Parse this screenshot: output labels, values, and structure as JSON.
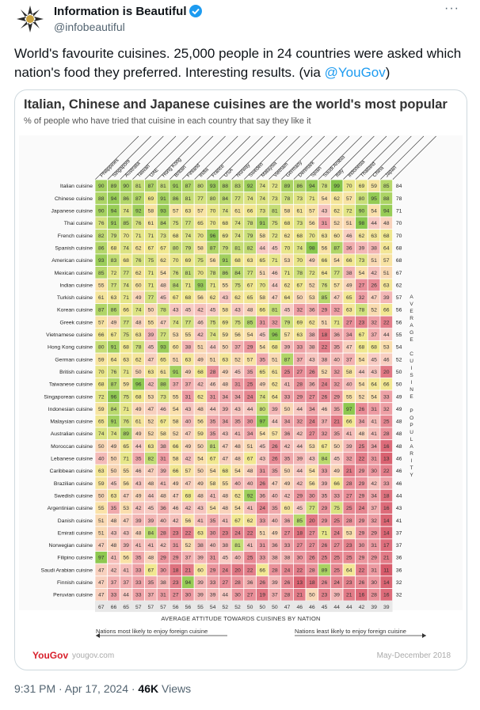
{
  "account": {
    "name": "Information is Beautiful",
    "handle": "@infobeautiful",
    "more_label": "···"
  },
  "tweet": {
    "text": "World's favourite cuisines. 25,000 people in 24 countries were asked which nation's food they preferred. Interesting results. (via ",
    "mention": "@YouGov",
    "closing": ")"
  },
  "card": {
    "title": "Italian, Chinese and Japanese cuisines are the world's most popular",
    "subtitle": "% of people who have tried that cuisine in each country that say they like it",
    "x_axis_label": "AVERAGE ATTITUDE TOWARDS CUISINES BY NATION",
    "left_arrow_label": "Nations most likely to enjoy foreign cuisine",
    "right_arrow_label": "Nations least likely to enjoy foreign cuisine",
    "right_axis_label": "AVERAGE CUISINE POPULARITY",
    "brand": "YouGov",
    "brand_url": "yougov.com",
    "date": "May-December 2018"
  },
  "footer": {
    "time": "9:31 PM · Apr 17, 2024 · ",
    "views": "46K",
    "views_label": " Views"
  },
  "colors": {
    "link": "#1d9bf0",
    "brand": "#d8202c"
  },
  "chart_data": {
    "type": "heatmap",
    "title": "Italian, Chinese and Japanese cuisines are the world's most popular",
    "subtitle": "% of people who have tried that cuisine in each country that say they like it",
    "columns": [
      "Philippines",
      "Singapore",
      "Australia",
      "Taiwan",
      "UAE",
      "Hong Kong",
      "Britain",
      "Finland",
      "India",
      "France",
      "USA",
      "Norway",
      "Sweden",
      "Malaysia",
      "Vietnam",
      "Germany",
      "Denmark",
      "Spain",
      "Saudi Arabia",
      "Italy",
      "Indonesia",
      "Thailand",
      "China",
      "Japan"
    ],
    "rows": [
      "Italian cuisine",
      "Chinese cuisine",
      "Japanese cuisine",
      "Thai cuisine",
      "French cuisine",
      "Spanish cuisine",
      "American cuisine",
      "Mexican cuisine",
      "Indian cuisine",
      "Turkish cuisine",
      "Korean cuisine",
      "Greek cuisine",
      "Vietnamese cuisine",
      "Hong Kong cuisine",
      "German cuisine",
      "British cuisine",
      "Taiwanese cuisine",
      "Singaporean cuisine",
      "Indonesian cuisine",
      "Malaysian cuisine",
      "Australian cuisine",
      "Moroccan cuisine",
      "Lebanese cuisine",
      "Caribbean cuisine",
      "Brazilian cuisine",
      "Swedish cuisine",
      "Argentinian cuisine",
      "Danish cuisine",
      "Emirati cuisine",
      "Norwegian cuisine",
      "Filipino cuisine",
      "Saudi Arabian cuisine",
      "Finnish cuisine",
      "Peruvian cuisine"
    ],
    "values": [
      [
        90,
        89,
        90,
        81,
        87,
        81,
        91,
        87,
        80,
        93,
        88,
        83,
        92,
        74,
        72,
        89,
        86,
        94,
        78,
        99,
        70,
        69,
        59,
        85
      ],
      [
        88,
        94,
        86,
        87,
        69,
        91,
        86,
        81,
        77,
        80,
        84,
        77,
        74,
        74,
        73,
        78,
        73,
        71,
        54,
        62,
        57,
        80,
        95,
        88
      ],
      [
        90,
        94,
        74,
        92,
        58,
        93,
        57,
        63,
        57,
        70,
        74,
        61,
        66,
        73,
        81,
        58,
        61,
        57,
        43,
        62,
        72,
        90,
        54,
        94
      ],
      [
        76,
        91,
        85,
        76,
        61,
        84,
        75,
        77,
        65,
        70,
        68,
        74,
        78,
        91,
        75,
        68,
        73,
        56,
        31,
        52,
        51,
        98,
        44,
        48
      ],
      [
        82,
        79,
        70,
        71,
        71,
        73,
        68,
        74,
        70,
        96,
        69,
        74,
        79,
        58,
        72,
        62,
        68,
        70,
        63,
        60,
        46,
        62,
        63,
        68
      ],
      [
        86,
        68,
        74,
        62,
        67,
        67,
        80,
        79,
        58,
        87,
        79,
        81,
        82,
        44,
        45,
        70,
        74,
        98,
        56,
        87,
        36,
        39,
        38,
        64
      ],
      [
        93,
        83,
        68,
        76,
        75,
        62,
        70,
        69,
        75,
        56,
        91,
        68,
        63,
        65,
        71,
        53,
        70,
        49,
        66,
        54,
        66,
        73,
        51,
        57
      ],
      [
        85,
        72,
        77,
        62,
        71,
        54,
        76,
        81,
        70,
        78,
        86,
        84,
        77,
        51,
        46,
        71,
        78,
        72,
        64,
        77,
        38,
        54,
        42,
        51
      ],
      [
        55,
        77,
        74,
        60,
        71,
        48,
        84,
        71,
        93,
        71,
        55,
        75,
        67,
        70,
        44,
        62,
        67,
        52,
        76,
        57,
        49,
        27,
        26,
        63
      ],
      [
        61,
        63,
        71,
        49,
        77,
        45,
        67,
        68,
        56,
        62,
        43,
        62,
        65,
        58,
        47,
        64,
        50,
        53,
        85,
        47,
        65,
        32,
        47,
        39
      ],
      [
        87,
        86,
        66,
        74,
        50,
        78,
        43,
        45,
        42,
        45,
        58,
        43,
        48,
        66,
        81,
        45,
        32,
        36,
        29,
        32,
        63,
        78,
        52,
        66
      ],
      [
        57,
        49,
        77,
        48,
        55,
        47,
        74,
        77,
        46,
        75,
        69,
        75,
        85,
        31,
        32,
        79,
        69,
        62,
        51,
        71,
        27,
        23,
        32,
        22
      ],
      [
        66,
        67,
        75,
        63,
        39,
        77,
        53,
        55,
        42,
        74,
        59,
        56,
        54,
        45,
        96,
        57,
        63,
        38,
        18,
        36,
        34,
        67,
        37,
        44
      ],
      [
        80,
        91,
        68,
        78,
        45,
        93,
        60,
        38,
        51,
        44,
        50,
        37,
        29,
        54,
        68,
        39,
        33,
        38,
        22,
        35,
        47,
        68,
        68,
        53
      ],
      [
        59,
        64,
        63,
        62,
        47,
        65,
        51,
        63,
        49,
        51,
        63,
        52,
        57,
        35,
        51,
        87,
        37,
        43,
        38,
        40,
        37,
        54,
        45,
        46
      ],
      [
        70,
        76,
        71,
        50,
        63,
        61,
        91,
        49,
        68,
        28,
        49,
        45,
        35,
        65,
        61,
        25,
        27,
        26,
        52,
        32,
        58,
        44,
        43,
        20
      ],
      [
        68,
        87,
        59,
        96,
        42,
        88,
        37,
        37,
        42,
        46,
        48,
        31,
        25,
        49,
        62,
        41,
        28,
        36,
        24,
        32,
        40,
        54,
        64,
        66
      ],
      [
        72,
        96,
        75,
        68,
        53,
        73,
        55,
        31,
        62,
        31,
        34,
        34,
        24,
        74,
        64,
        33,
        29,
        27,
        26,
        29,
        55,
        52,
        54,
        33
      ],
      [
        59,
        84,
        71,
        49,
        47,
        46,
        54,
        43,
        48,
        44,
        39,
        43,
        44,
        80,
        39,
        50,
        44,
        34,
        46,
        35,
        97,
        26,
        31,
        32
      ],
      [
        65,
        91,
        76,
        61,
        52,
        67,
        58,
        40,
        56,
        35,
        34,
        35,
        30,
        97,
        44,
        34,
        32,
        24,
        37,
        21,
        66,
        34,
        41,
        25
      ],
      [
        74,
        74,
        89,
        49,
        52,
        58,
        52,
        47,
        59,
        35,
        43,
        41,
        34,
        54,
        57,
        36,
        42,
        27,
        32,
        35,
        41,
        48,
        41,
        28
      ],
      [
        50,
        49,
        65,
        44,
        63,
        38,
        66,
        49,
        50,
        81,
        47,
        48,
        51,
        45,
        26,
        42,
        44,
        53,
        67,
        50,
        39,
        25,
        34,
        16
      ],
      [
        40,
        50,
        71,
        35,
        82,
        31,
        58,
        42,
        54,
        67,
        47,
        48,
        67,
        43,
        26,
        35,
        39,
        43,
        84,
        45,
        32,
        22,
        31,
        13
      ],
      [
        63,
        50,
        55,
        46,
        47,
        39,
        66,
        57,
        50,
        54,
        68,
        54,
        48,
        31,
        35,
        50,
        44,
        54,
        33,
        49,
        21,
        29,
        30,
        22
      ],
      [
        59,
        45,
        56,
        43,
        48,
        41,
        49,
        47,
        49,
        58,
        55,
        40,
        40,
        26,
        47,
        49,
        42,
        56,
        39,
        66,
        28,
        29,
        42,
        33
      ],
      [
        50,
        63,
        47,
        49,
        44,
        48,
        47,
        68,
        48,
        41,
        48,
        62,
        92,
        36,
        40,
        42,
        29,
        30,
        35,
        33,
        27,
        29,
        34,
        18
      ],
      [
        55,
        35,
        53,
        42,
        45,
        36,
        46,
        42,
        43,
        54,
        48,
        54,
        41,
        24,
        35,
        60,
        45,
        77,
        29,
        75,
        25,
        24,
        37,
        16
      ],
      [
        51,
        48,
        47,
        39,
        39,
        40,
        42,
        56,
        41,
        35,
        41,
        67,
        62,
        33,
        40,
        36,
        85,
        20,
        29,
        25,
        28,
        29,
        32,
        14
      ],
      [
        51,
        43,
        43,
        48,
        84,
        28,
        23,
        22,
        63,
        30,
        23,
        24,
        22,
        51,
        49,
        27,
        18,
        27,
        71,
        24,
        53,
        29,
        29,
        14
      ],
      [
        47,
        48,
        39,
        41,
        41,
        42,
        31,
        52,
        38,
        40,
        38,
        81,
        41,
        31,
        36,
        33,
        27,
        27,
        26,
        27,
        23,
        30,
        31,
        17
      ],
      [
        97,
        41,
        56,
        35,
        48,
        29,
        29,
        37,
        39,
        31,
        45,
        40,
        25,
        33,
        38,
        38,
        30,
        26,
        25,
        25,
        25,
        29,
        29,
        21
      ],
      [
        47,
        42,
        41,
        33,
        67,
        30,
        18,
        21,
        60,
        29,
        24,
        20,
        22,
        66,
        28,
        24,
        22,
        28,
        89,
        25,
        64,
        22,
        31,
        11
      ],
      [
        47,
        37,
        37,
        33,
        35,
        38,
        23,
        94,
        39,
        33,
        27,
        28,
        36,
        26,
        39,
        26,
        13,
        18,
        26,
        24,
        23,
        26,
        30,
        14
      ],
      [
        47,
        33,
        44,
        33,
        37,
        31,
        27,
        30,
        39,
        39,
        44,
        30,
        27,
        19,
        37,
        28,
        21,
        50,
        23,
        39,
        21,
        16,
        28,
        16
      ]
    ],
    "row_averages": [
      84,
      78,
      71,
      70,
      70,
      68,
      68,
      67,
      62,
      57,
      56,
      56,
      55,
      54,
      52,
      50,
      50,
      49,
      49,
      48,
      48,
      48,
      46,
      46,
      46,
      44,
      43,
      41,
      37,
      37,
      36,
      36,
      32,
      32
    ],
    "column_averages": [
      67,
      66,
      65,
      57,
      57,
      57,
      56,
      56,
      55,
      54,
      52,
      52,
      50,
      50,
      50,
      47,
      46,
      46,
      45,
      44,
      44,
      42,
      39,
      39
    ],
    "xlabel": "AVERAGE ATTITUDE TOWARDS CUISINES BY NATION",
    "ylabel": "AVERAGE CUISINE POPULARITY",
    "legend": "none",
    "grid": true
  }
}
